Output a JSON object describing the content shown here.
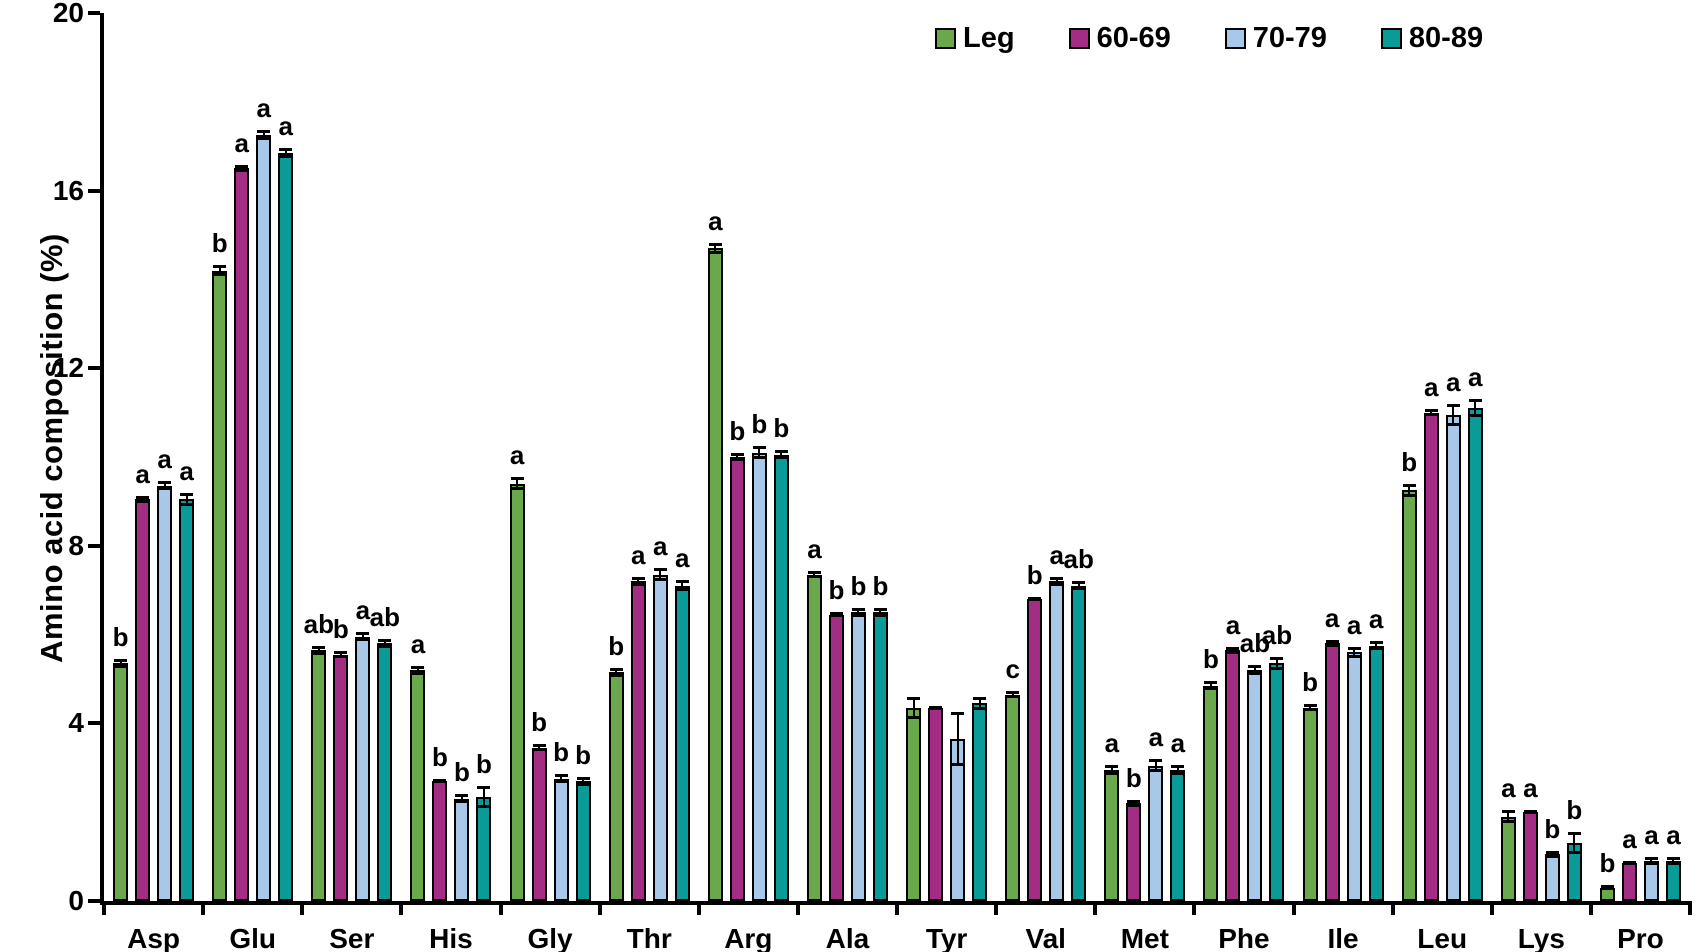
{
  "chart_data": {
    "type": "bar",
    "title": "",
    "xlabel": "",
    "ylabel": "Amino acid composition (%)",
    "ylim": [
      0,
      20
    ],
    "yticks": [
      0,
      4,
      8,
      12,
      16,
      20
    ],
    "grid": false,
    "legend_position": "top-right",
    "error_bars": true,
    "categories": [
      "Asp",
      "Glu",
      "Ser",
      "His",
      "Gly",
      "Thr",
      "Arg",
      "Ala",
      "Tyr",
      "Val",
      "Met",
      "Phe",
      "Ile",
      "Leu",
      "Lys",
      "Pro"
    ],
    "series": [
      {
        "name": "Leg",
        "color": "#6aa84c",
        "values": [
          5.35,
          14.2,
          5.65,
          5.2,
          9.4,
          5.15,
          14.7,
          7.35,
          4.35,
          4.65,
          2.95,
          4.85,
          4.35,
          9.25,
          1.9,
          0.3
        ],
        "errors": [
          0.1,
          0.12,
          0.1,
          0.1,
          0.15,
          0.1,
          0.12,
          0.08,
          0.25,
          0.08,
          0.12,
          0.1,
          0.08,
          0.15,
          0.15,
          0.05
        ],
        "letters": [
          "b",
          "b",
          "ab",
          "a",
          "a",
          "b",
          "a",
          "a",
          "",
          "c",
          "a",
          "b",
          "b",
          "b",
          "a",
          "b"
        ]
      },
      {
        "name": "60-69",
        "color": "#a32c85",
        "values": [
          9.05,
          16.5,
          5.55,
          2.7,
          3.45,
          7.2,
          10.0,
          6.45,
          4.35,
          6.8,
          2.2,
          5.65,
          5.8,
          11.0,
          2.0,
          0.85
        ],
        "errors": [
          0.08,
          0.08,
          0.08,
          0.05,
          0.08,
          0.1,
          0.08,
          0.05,
          0.05,
          0.05,
          0.08,
          0.08,
          0.08,
          0.08,
          0.05,
          0.05
        ],
        "letters": [
          "a",
          "a",
          "b",
          "b",
          "b",
          "a",
          "b",
          "b",
          "",
          "b",
          "b",
          "a",
          "a",
          "a",
          "a",
          "a"
        ]
      },
      {
        "name": "70-79",
        "color": "#a8c8ea",
        "values": [
          9.35,
          17.25,
          5.95,
          2.3,
          2.75,
          7.35,
          10.1,
          6.5,
          3.65,
          7.2,
          3.05,
          5.2,
          5.6,
          10.95,
          1.05,
          0.9
        ],
        "errors": [
          0.1,
          0.12,
          0.1,
          0.1,
          0.1,
          0.15,
          0.15,
          0.1,
          0.6,
          0.1,
          0.15,
          0.12,
          0.12,
          0.25,
          0.08,
          0.1
        ],
        "letters": [
          "a",
          "a",
          "a",
          "b",
          "b",
          "a",
          "b",
          "b",
          "",
          "a",
          "a",
          "ab",
          "a",
          "a",
          "b",
          "a"
        ]
      },
      {
        "name": "80-89",
        "color": "#0a9a98",
        "values": [
          9.05,
          16.85,
          5.8,
          2.35,
          2.7,
          7.1,
          10.05,
          6.5,
          4.45,
          7.1,
          2.95,
          5.35,
          5.75,
          11.1,
          1.3,
          0.9
        ],
        "errors": [
          0.15,
          0.12,
          0.1,
          0.25,
          0.1,
          0.12,
          0.1,
          0.1,
          0.15,
          0.1,
          0.12,
          0.15,
          0.1,
          0.2,
          0.25,
          0.1
        ],
        "letters": [
          "a",
          "a",
          "ab",
          "b",
          "b",
          "a",
          "b",
          "b",
          "",
          "ab",
          "a",
          "ab",
          "a",
          "a",
          "b",
          "a"
        ]
      }
    ]
  }
}
